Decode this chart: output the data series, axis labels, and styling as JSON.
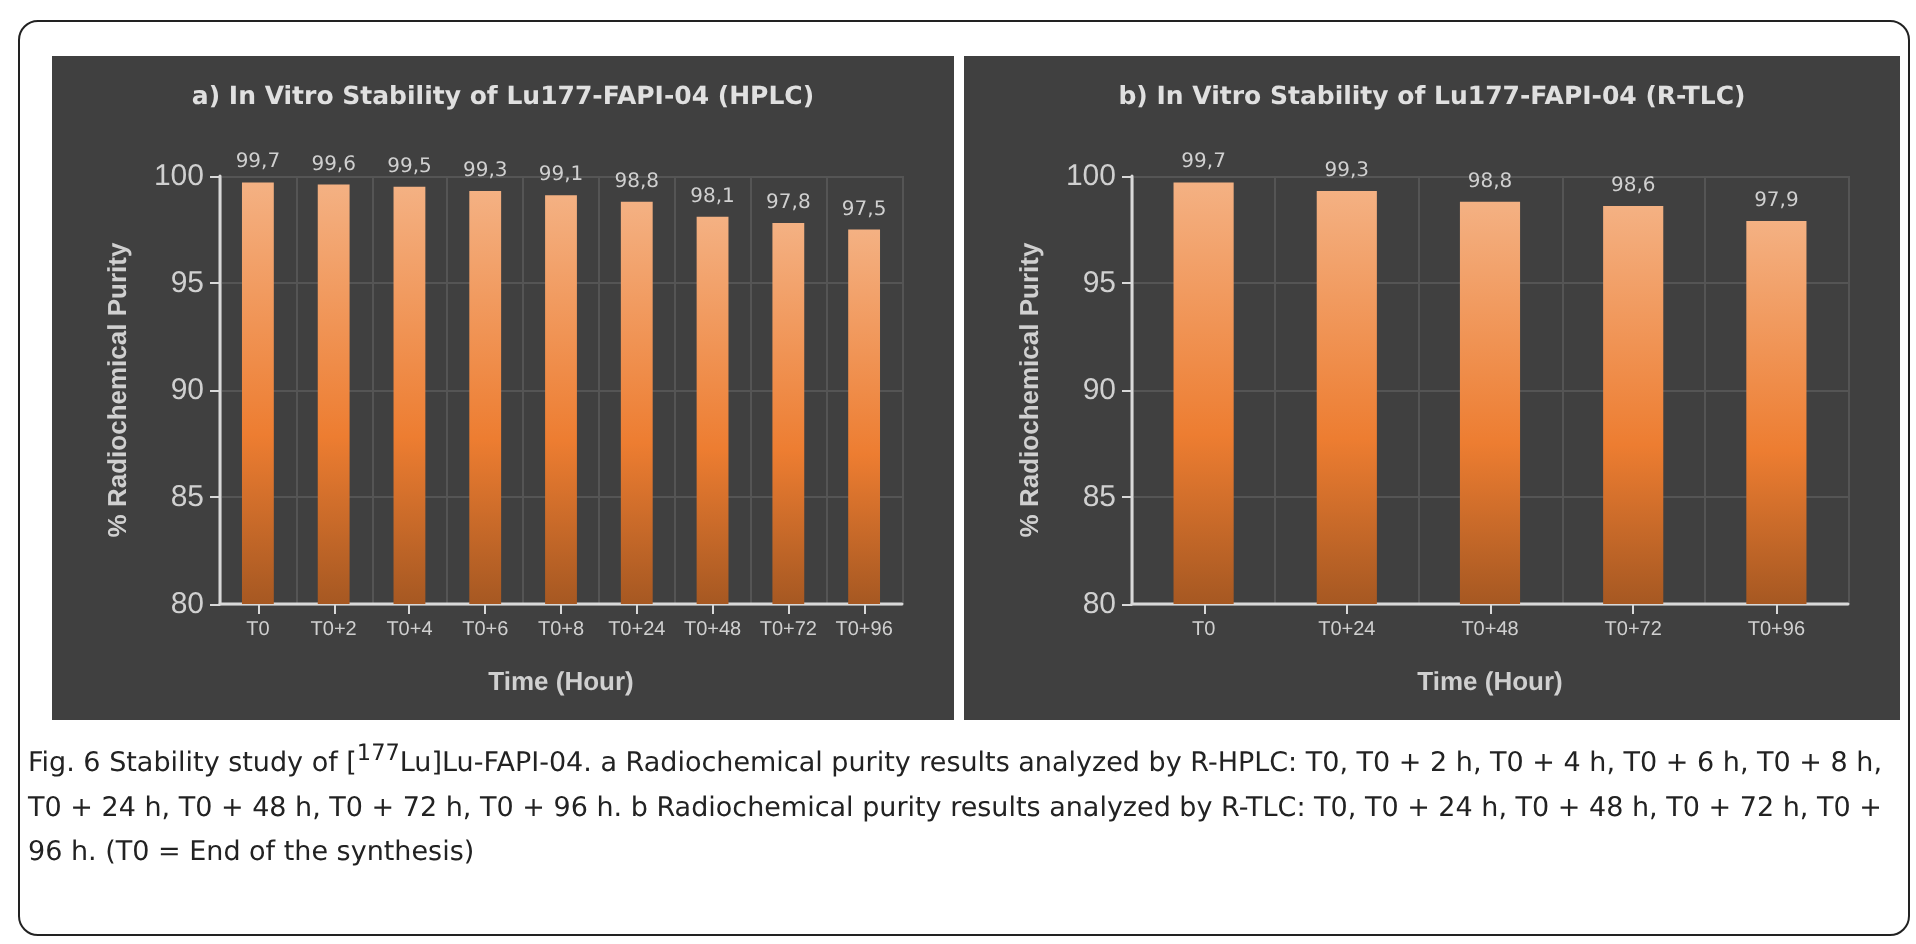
{
  "chart_data": [
    {
      "type": "bar",
      "title": "a) In Vitro Stability of Lu177-FAPI-04 (HPLC)",
      "xlabel": "Time (Hour)",
      "ylabel": "% Radiochemical Purity",
      "categories": [
        "T0",
        "T0+2",
        "T0+4",
        "T0+6",
        "T0+8",
        "T0+24",
        "T0+48",
        "T0+72",
        "T0+96"
      ],
      "values": [
        99.7,
        99.6,
        99.5,
        99.3,
        99.1,
        98.8,
        98.1,
        97.8,
        97.5
      ],
      "value_labels": [
        "99,7",
        "99,6",
        "99,5",
        "99,3",
        "99,1",
        "98,8",
        "98,1",
        "97,8",
        "97,5"
      ],
      "color": "#ed7d31",
      "ylim": [
        80,
        100
      ],
      "yticks": [
        80,
        85,
        90,
        95,
        100
      ],
      "grid": true,
      "annotations": [
        "Fig. 6 Stability study of [$^{177}$Lu]Lu-FAPI-04. a Radiochemical purity results analyzed by R-HPLC: T0, T0 + 2 h, T0 + 4 h, T0 + 6 h, T0 + 8 h, T0 + 24 h, T0 + 48 h, T0 + 72 h, T0 + 96 h. b Radiochemical purity results analyzed by R-TLC: T0, T0 + 24 h, T0 + 48 h, T0 + 72 h, T0 + 96 h. (T0 = End of the synthesis)"
      ]
    },
    {
      "type": "bar",
      "title": "b) In Vitro Stability of Lu177-FAPI-04 (R-TLC)",
      "xlabel": "Time (Hour)",
      "ylabel": "% Radiochemical Purity",
      "categories": [
        "T0",
        "T0+24",
        "T0+48",
        "T0+72",
        "T0+96"
      ],
      "values": [
        99.7,
        99.3,
        98.8,
        98.6,
        97.9
      ],
      "value_labels": [
        "99,7",
        "99,3",
        "98,8",
        "98,6",
        "97,9"
      ],
      "color": "#ed7d31",
      "ylim": [
        80,
        100
      ],
      "yticks": [
        80,
        85,
        90,
        95,
        100
      ],
      "grid": true
    }
  ]
}
